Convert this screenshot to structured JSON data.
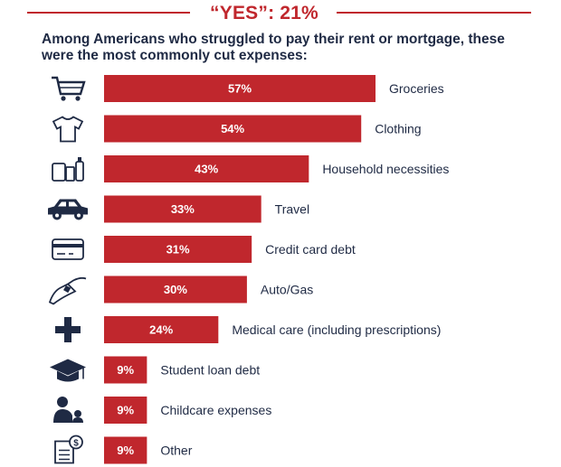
{
  "header": {
    "title": "“YES”: 21%",
    "subtitle": "Among Americans who struggled to pay their rent or mortgage, these were the most commonly cut expenses:"
  },
  "colors": {
    "bar": "#c0272d",
    "text": "#1f2a44",
    "accent": "#c0272d"
  },
  "chart_data": {
    "type": "bar",
    "orientation": "horizontal",
    "title": "“YES”: 21%",
    "subtitle": "Among Americans who struggled to pay their rent or mortgage, these were the most commonly cut expenses:",
    "categories": [
      "Groceries",
      "Clothing",
      "Household necessities",
      "Travel",
      "Credit card debt",
      "Auto/Gas",
      "Medical care (including prescriptions)",
      "Student loan debt",
      "Childcare expenses",
      "Other"
    ],
    "values": [
      57,
      54,
      43,
      33,
      31,
      30,
      24,
      9,
      9,
      9
    ],
    "value_labels": [
      "57%",
      "54%",
      "43%",
      "33%",
      "31%",
      "30%",
      "24%",
      "9%",
      "9%",
      "9%"
    ],
    "icons": [
      "shopping-cart-icon",
      "tshirt-icon",
      "household-items-icon",
      "car-icon",
      "credit-card-icon",
      "gas-pump-icon",
      "medical-cross-icon",
      "graduation-cap-icon",
      "parent-child-icon",
      "bill-dollar-icon"
    ],
    "unit": "%",
    "grid": false,
    "legend": "none"
  }
}
